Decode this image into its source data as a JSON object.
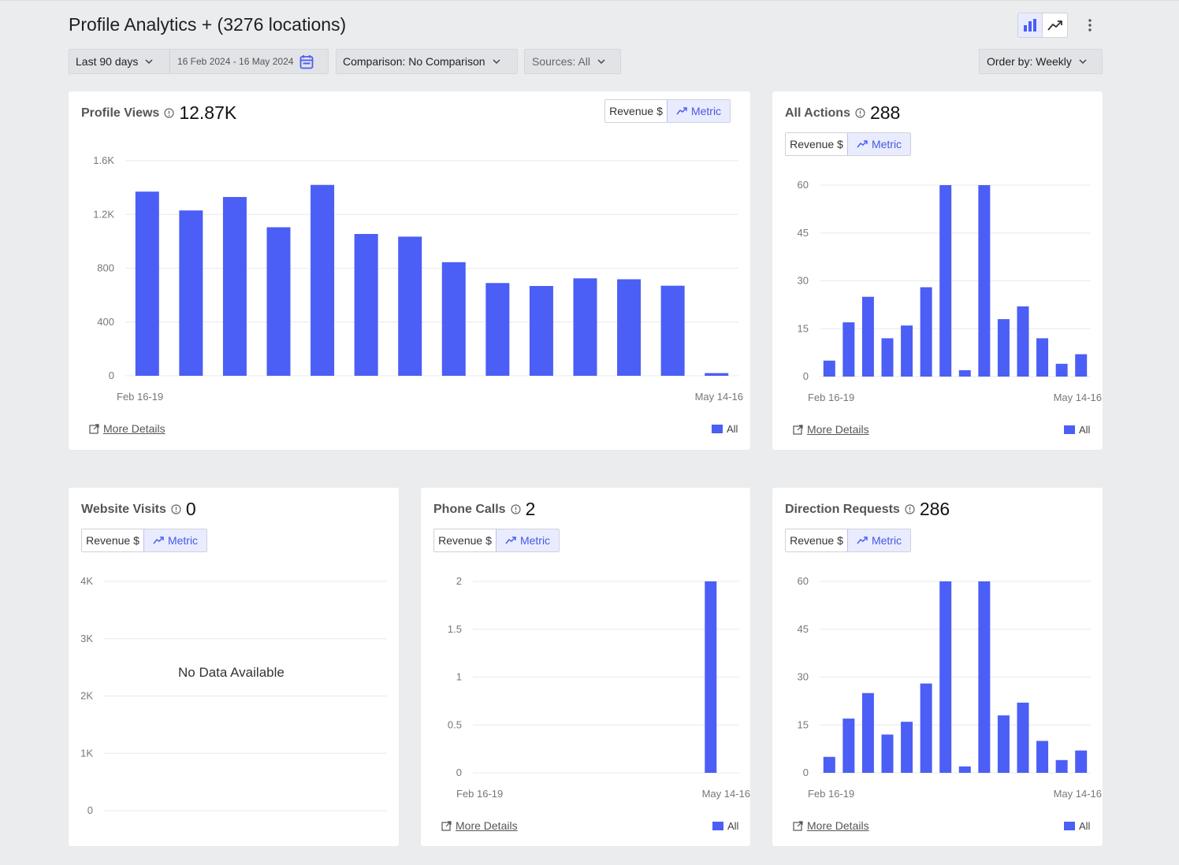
{
  "header": {
    "title": "Profile Analytics + (3276 locations)"
  },
  "filters": {
    "range_label": "Last 90 days",
    "date_range": "16 Feb 2024 - 16 May 2024",
    "comparison": "Comparison: No Comparison",
    "sources": "Sources: All",
    "order_by": "Order by: Weekly"
  },
  "common": {
    "revenue_label": "Revenue $",
    "metric_label": "Metric",
    "more_details": "More Details",
    "legend_all": "All",
    "bar_color": "#4b5ef5"
  },
  "cards": {
    "profile_views": {
      "title": "Profile Views",
      "value": "12.87K"
    },
    "all_actions": {
      "title": "All Actions",
      "value": "288"
    },
    "website_visits": {
      "title": "Website Visits",
      "value": "0",
      "no_data": "No Data Available"
    },
    "phone_calls": {
      "title": "Phone Calls",
      "value": "2"
    },
    "direction_requests": {
      "title": "Direction Requests",
      "value": "286"
    }
  },
  "chart_data": [
    {
      "id": "profile_views",
      "type": "bar",
      "x_start_label": "Feb 16-19",
      "x_end_label": "May 14-16",
      "ylim": [
        0,
        1600
      ],
      "yticks": [
        0,
        400,
        800,
        1200,
        1600
      ],
      "ytick_labels": [
        "0",
        "400",
        "800",
        "1.2K",
        "1.6K"
      ],
      "values": [
        1370,
        1230,
        1330,
        1105,
        1420,
        1055,
        1035,
        845,
        690,
        668,
        725,
        718,
        670,
        20
      ],
      "legend": "All"
    },
    {
      "id": "all_actions",
      "type": "bar",
      "x_start_label": "Feb 16-19",
      "x_end_label": "May 14-16",
      "ylim": [
        0,
        60
      ],
      "yticks": [
        0,
        15,
        30,
        45,
        60
      ],
      "ytick_labels": [
        "0",
        "15",
        "30",
        "45",
        "60"
      ],
      "values": [
        5,
        17,
        25,
        12,
        16,
        28,
        60,
        2,
        60,
        18,
        22,
        12,
        4,
        7
      ],
      "legend": "All"
    },
    {
      "id": "website_visits",
      "type": "bar",
      "ylim": [
        0,
        4000
      ],
      "yticks": [
        0,
        1000,
        2000,
        3000,
        4000
      ],
      "ytick_labels": [
        "0",
        "1K",
        "2K",
        "3K",
        "4K"
      ],
      "values": []
    },
    {
      "id": "phone_calls",
      "type": "bar",
      "x_start_label": "Feb 16-19",
      "x_end_label": "May 14-16",
      "ylim": [
        0,
        2
      ],
      "yticks": [
        0,
        0.5,
        1,
        1.5,
        2
      ],
      "ytick_labels": [
        "0",
        "0.5",
        "1",
        "1.5",
        "2"
      ],
      "values": [
        0,
        0,
        0,
        0,
        0,
        0,
        0,
        0,
        0,
        0,
        0,
        0,
        2,
        0
      ],
      "legend": "All"
    },
    {
      "id": "direction_requests",
      "type": "bar",
      "x_start_label": "Feb 16-19",
      "x_end_label": "May 14-16",
      "ylim": [
        0,
        60
      ],
      "yticks": [
        0,
        15,
        30,
        45,
        60
      ],
      "ytick_labels": [
        "0",
        "15",
        "30",
        "45",
        "60"
      ],
      "values": [
        5,
        17,
        25,
        12,
        16,
        28,
        60,
        2,
        60,
        18,
        22,
        10,
        4,
        7
      ],
      "legend": "All"
    }
  ]
}
